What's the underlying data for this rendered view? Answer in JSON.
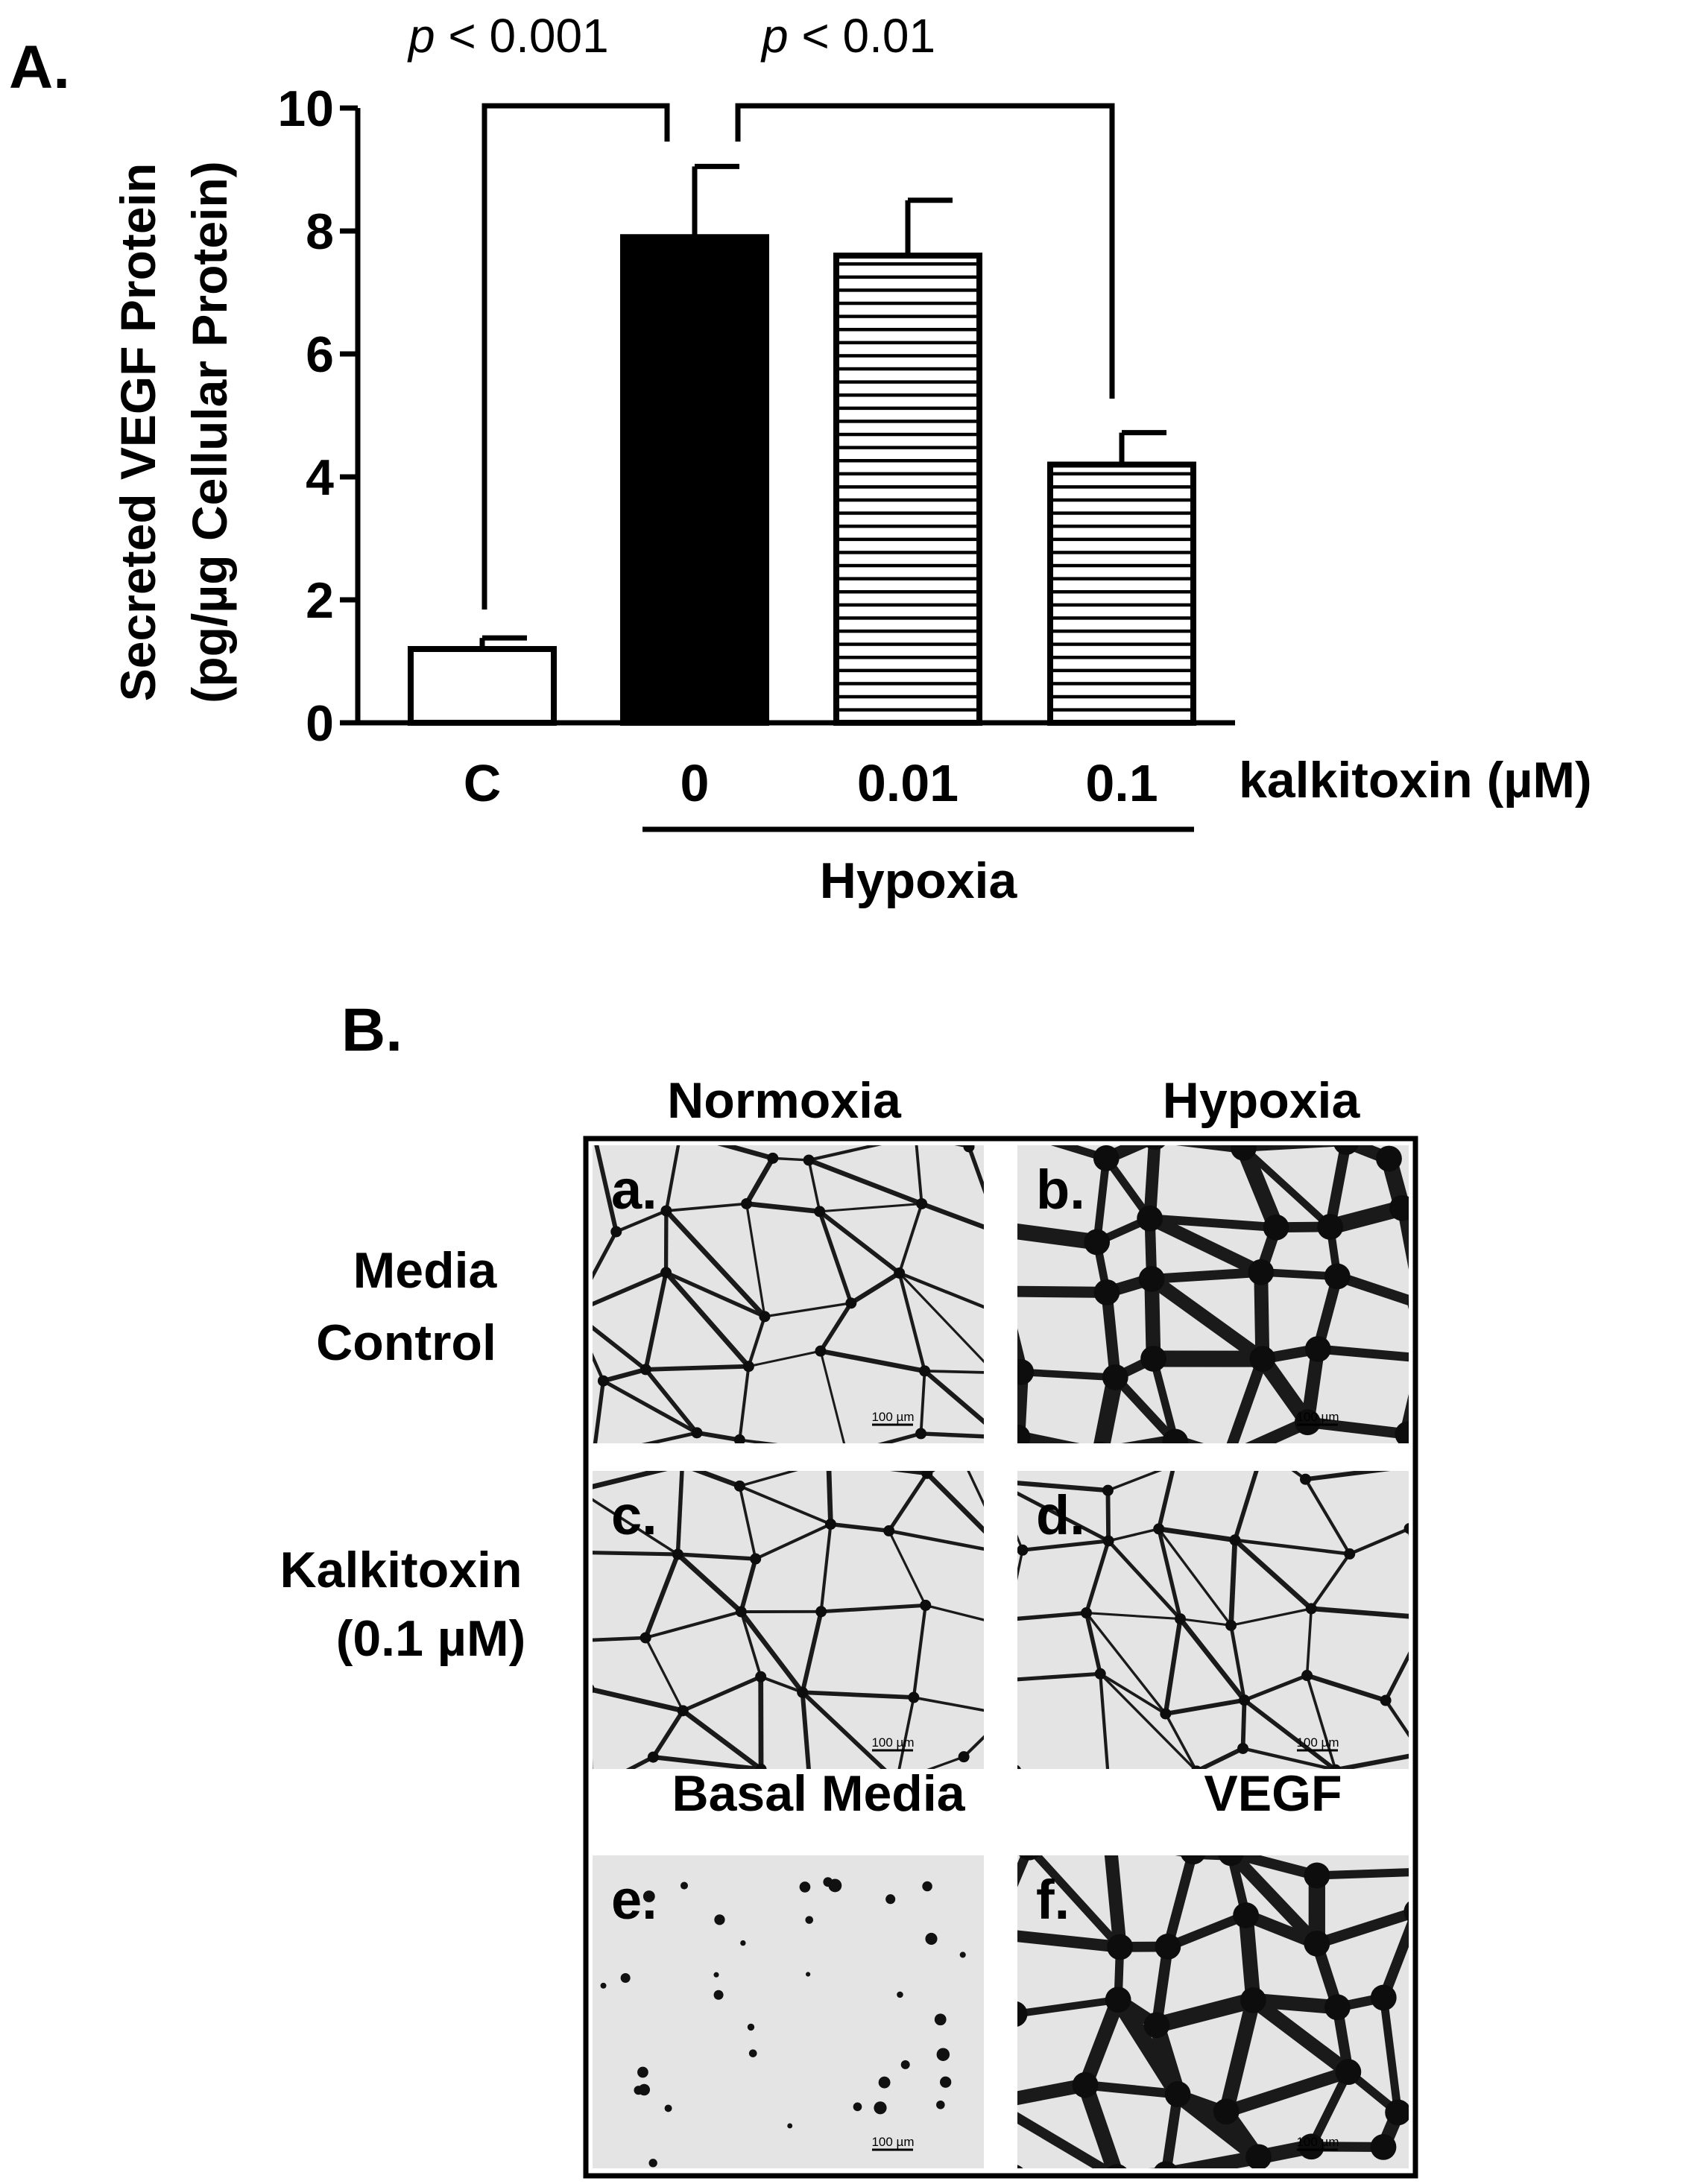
{
  "panel_a": {
    "label": "A.",
    "chart_data": {
      "type": "bar",
      "categories": [
        "C",
        "0",
        "0.01",
        "0.1"
      ],
      "values": [
        1.2,
        7.9,
        7.6,
        4.2
      ],
      "errors": [
        0.18,
        1.15,
        0.9,
        0.52
      ],
      "fills": [
        "white",
        "black",
        "hatched",
        "hatched"
      ],
      "ylabel_line1": "Secreted VEGF Protein",
      "ylabel_line2": "(pg/µg Cellular Protein)",
      "yticks": [
        "0",
        "2",
        "4",
        "6",
        "8",
        "10"
      ],
      "ylim": [
        0,
        10
      ],
      "x_axis_title": "kalkitoxin (µM)",
      "group_label": "Hypoxia",
      "group_categories": [
        "0",
        "0.01",
        "0.1"
      ],
      "comparisons": [
        {
          "p_symbol": "p",
          "p_text": " < 0.001",
          "between": [
            "C",
            "0"
          ]
        },
        {
          "p_symbol": "p",
          "p_text": " < 0.01",
          "between": [
            "0",
            "0.1"
          ]
        }
      ]
    }
  },
  "panel_b": {
    "label": "B.",
    "column_headers": [
      "Normoxia",
      "Hypoxia"
    ],
    "row_labels": [
      {
        "line1": "Media",
        "line2": "Control"
      },
      {
        "line1": "Kalkitoxin",
        "line2": "(0.1 µM)"
      }
    ],
    "third_row_headers": [
      "Basal Media",
      "VEGF"
    ],
    "images": [
      {
        "letter": "a.",
        "scale": "100 µm"
      },
      {
        "letter": "b.",
        "scale": "100 µm"
      },
      {
        "letter": "c.",
        "scale": "100 µm"
      },
      {
        "letter": "d.",
        "scale": "100 µm"
      },
      {
        "letter": "e.",
        "scale": "100 µm"
      },
      {
        "letter": "f.",
        "scale": "100 µm"
      }
    ]
  }
}
